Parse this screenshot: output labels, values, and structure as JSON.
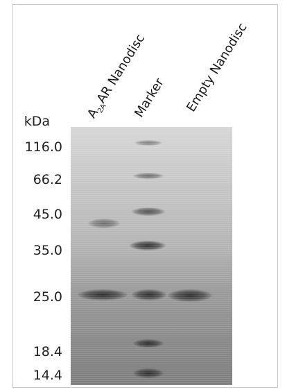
{
  "lanes": {
    "lane1_main": "A",
    "lane1_sub": "2A",
    "lane1_rest": "AR Nanodisc",
    "lane2": "Marker",
    "lane3": "Empty Nanodisc"
  },
  "axis": {
    "unit": "kDa",
    "markers": [
      "116.0",
      "66.2",
      "45.0",
      "35.0",
      "25.0",
      "18.4",
      "14.4"
    ]
  }
}
